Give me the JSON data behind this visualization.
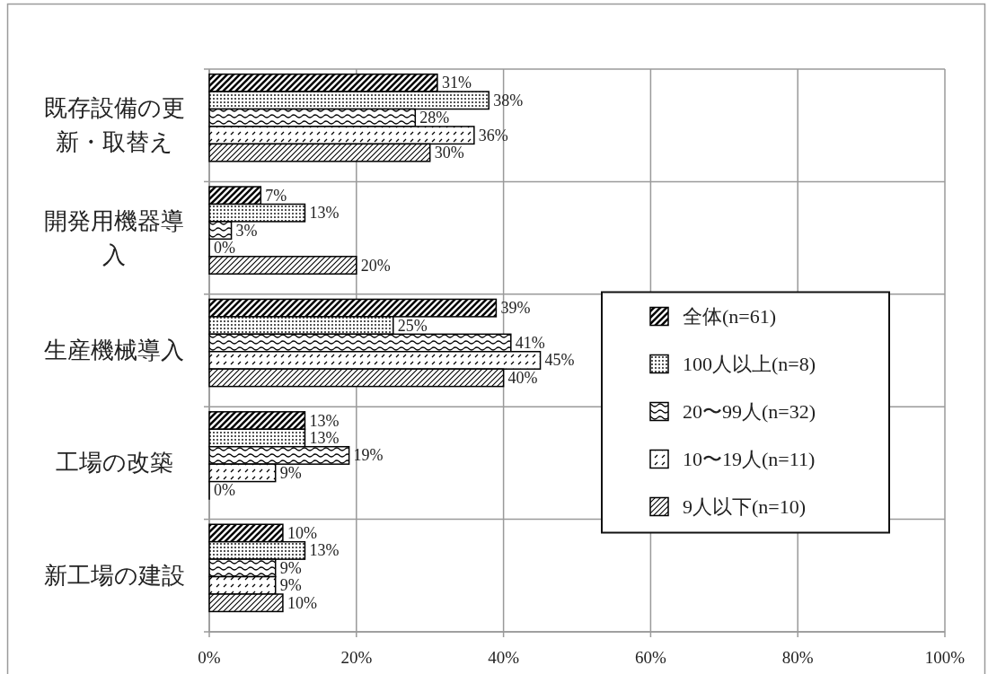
{
  "chart_data": {
    "type": "bar",
    "orientation": "horizontal",
    "categories": [
      "既存設備の更新・取替え",
      "開発用機器導入",
      "生産機械導入",
      "工場の改築",
      "新工場の建設"
    ],
    "series": [
      {
        "name": "全体(n=61)",
        "color": "#000000",
        "values": [
          31,
          7,
          39,
          13,
          10
        ],
        "value_labels": [
          "31%",
          "7%",
          "39%",
          "13%",
          "10%"
        ]
      },
      {
        "name": "100人以上(n=8)",
        "color": "#000000",
        "values": [
          38,
          13,
          25,
          13,
          13
        ],
        "value_labels": [
          "38%",
          "13%",
          "25%",
          "13%",
          "13%"
        ]
      },
      {
        "name": "20〜99人(n=32)",
        "color": "#000000",
        "values": [
          28,
          3,
          41,
          19,
          9
        ],
        "value_labels": [
          "28%",
          "3%",
          "41%",
          "19%",
          "9%"
        ]
      },
      {
        "name": "10〜19人(n=11)",
        "color": "#000000",
        "values": [
          36,
          0,
          45,
          9,
          9
        ],
        "value_labels": [
          "36%",
          "0%",
          "45%",
          "9%",
          "9%"
        ]
      },
      {
        "name": "9人以下(n=10)",
        "color": "#000000",
        "values": [
          30,
          20,
          40,
          0,
          10
        ],
        "value_labels": [
          "30%",
          "20%",
          "40%",
          "0%",
          "10%"
        ]
      }
    ],
    "xlim": [
      0,
      100
    ],
    "xticks": [
      {
        "value": 0,
        "label": "0%"
      },
      {
        "value": 20,
        "label": "20%"
      },
      {
        "value": 40,
        "label": "40%"
      },
      {
        "value": 60,
        "label": "60%"
      },
      {
        "value": 80,
        "label": "80%"
      },
      {
        "value": 100,
        "label": "100%"
      }
    ],
    "grid": true,
    "legend": "right"
  }
}
